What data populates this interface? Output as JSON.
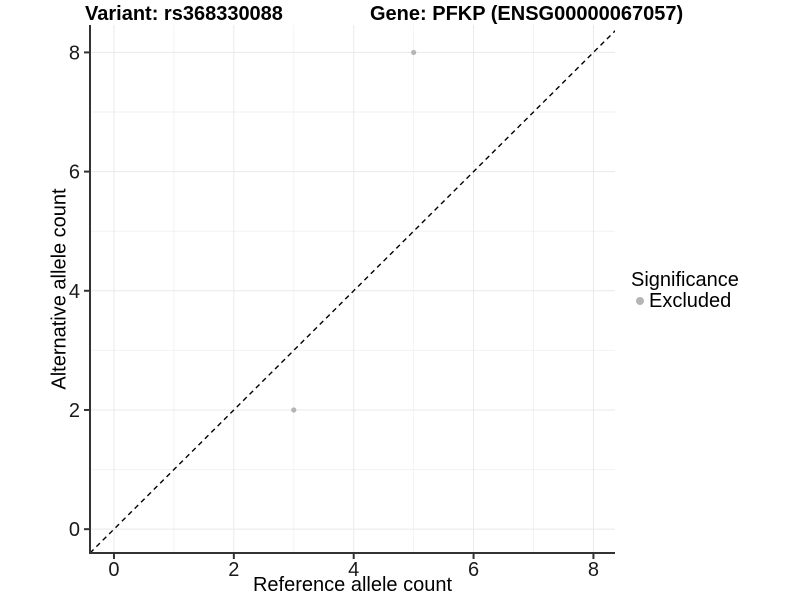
{
  "header": {
    "variant_title": "Variant: rs368330088",
    "gene_title": "Gene: PFKP (ENSG00000067057)"
  },
  "legend": {
    "title": "Significance",
    "entries": [
      {
        "label": "Excluded",
        "color": "#b5b5b5"
      }
    ]
  },
  "chart_data": {
    "type": "scatter",
    "title": "Variant: rs368330088   Gene: PFKP (ENSG00000067057)",
    "xlabel": "Reference allele count",
    "ylabel": "Alternative allele count",
    "xlim": [
      -0.4,
      8.36
    ],
    "ylim": [
      -0.4,
      8.46
    ],
    "x_ticks": [
      0,
      2,
      4,
      6,
      8
    ],
    "y_ticks": [
      0,
      2,
      4,
      6,
      8
    ],
    "x_minor_ticks": [
      1,
      3,
      5,
      7
    ],
    "y_minor_ticks": [
      1,
      3,
      5,
      7
    ],
    "grid": true,
    "legend_position": "right",
    "series": [
      {
        "name": "Excluded",
        "color": "#b5b5b5",
        "points": [
          {
            "x": 5,
            "y": 8
          },
          {
            "x": 3,
            "y": 2
          }
        ]
      }
    ],
    "reference_line": {
      "type": "identity",
      "style": "dashed",
      "color": "#000000"
    },
    "style": {
      "grid_major_color": "#e9e9e9",
      "grid_minor_color": "#f2f2f2",
      "axis_line_color": "#333333",
      "tick_label_color": "#1a1a1a",
      "point_radius": 2.6,
      "legend_key_radius": 4
    }
  }
}
